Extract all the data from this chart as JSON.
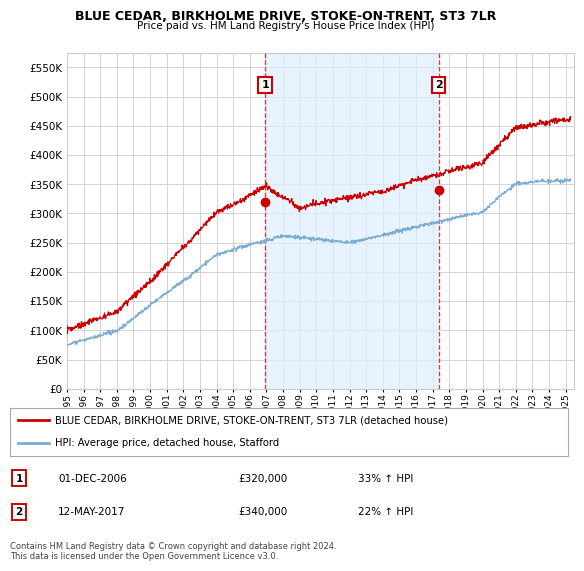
{
  "title": "BLUE CEDAR, BIRKHOLME DRIVE, STOKE-ON-TRENT, ST3 7LR",
  "subtitle": "Price paid vs. HM Land Registry's House Price Index (HPI)",
  "ytick_values": [
    0,
    50000,
    100000,
    150000,
    200000,
    250000,
    300000,
    350000,
    400000,
    450000,
    500000,
    550000
  ],
  "ylim": [
    0,
    575000
  ],
  "xlim_start": 1995.0,
  "xlim_end": 2025.5,
  "sale1_x": 2006.92,
  "sale1_y": 320000,
  "sale1_label": "1",
  "sale1_date": "01-DEC-2006",
  "sale1_price": "£320,000",
  "sale1_hpi": "33% ↑ HPI",
  "sale2_x": 2017.36,
  "sale2_y": 340000,
  "sale2_label": "2",
  "sale2_date": "12-MAY-2017",
  "sale2_price": "£340,000",
  "sale2_hpi": "22% ↑ HPI",
  "red_color": "#cc0000",
  "blue_color": "#7aadd4",
  "blue_fill_color": "#ddeeff",
  "vline_color": "#ee3333",
  "grid_color": "#cccccc",
  "background_color": "#ffffff",
  "legend_label_red": "BLUE CEDAR, BIRKHOLME DRIVE, STOKE-ON-TRENT, ST3 7LR (detached house)",
  "legend_label_blue": "HPI: Average price, detached house, Stafford",
  "footer_text": "Contains HM Land Registry data © Crown copyright and database right 2024.\nThis data is licensed under the Open Government Licence v3.0.",
  "xtick_years": [
    1995,
    1996,
    1997,
    1998,
    1999,
    2000,
    2001,
    2002,
    2003,
    2004,
    2005,
    2006,
    2007,
    2008,
    2009,
    2010,
    2011,
    2012,
    2013,
    2014,
    2015,
    2016,
    2017,
    2018,
    2019,
    2020,
    2021,
    2022,
    2023,
    2024,
    2025
  ]
}
